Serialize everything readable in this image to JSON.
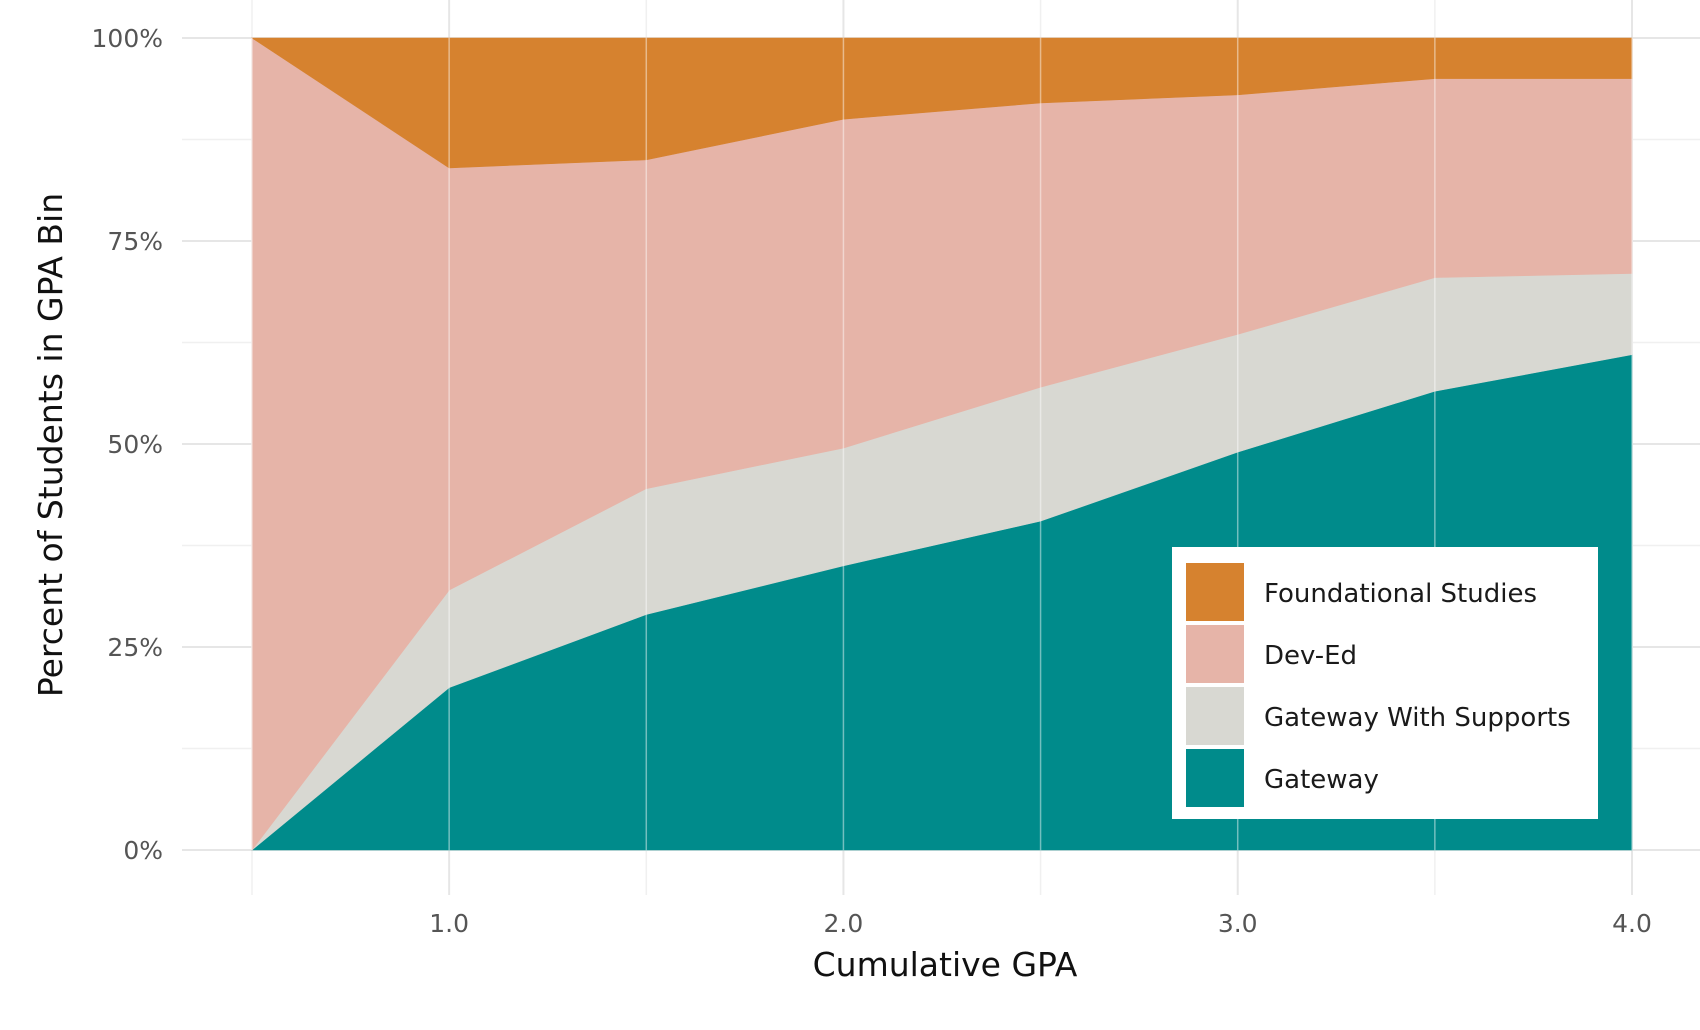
{
  "chart_data": {
    "type": "area",
    "stacked": true,
    "normalized": true,
    "title": "",
    "xlabel": "Cumulative GPA",
    "ylabel": "Percent of Students in GPA Bin",
    "x": [
      0.5,
      1.0,
      1.5,
      2.0,
      2.5,
      3.0,
      3.5,
      4.0
    ],
    "xlim": [
      0.5,
      4.0
    ],
    "xticks": [
      1.0,
      2.0,
      3.0,
      4.0
    ],
    "xtick_labels": [
      "1.0",
      "2.0",
      "3.0",
      "4.0"
    ],
    "ylim": [
      0,
      100
    ],
    "yticks": [
      0,
      25,
      50,
      75,
      100
    ],
    "ytick_labels": [
      "0%",
      "25%",
      "50%",
      "75%",
      "100%"
    ],
    "grid": true,
    "legend_position": "bottom-right",
    "series": [
      {
        "name": "Gateway",
        "color": "#008B8B",
        "values": [
          0,
          20,
          29,
          35,
          40.5,
          49,
          56.5,
          61
        ]
      },
      {
        "name": "Gateway With Supports",
        "color": "#D8D8D2",
        "values": [
          0,
          12,
          15.5,
          14.5,
          16.5,
          14.5,
          14,
          10
        ]
      },
      {
        "name": "Dev-Ed",
        "color": "#E6B4A8",
        "values": [
          100,
          52,
          40.5,
          40.5,
          35,
          29.5,
          24.5,
          24
        ]
      },
      {
        "name": "Foundational Studies",
        "color": "#D6822F",
        "values": [
          0,
          16,
          15,
          10,
          8,
          7,
          5,
          5
        ]
      }
    ],
    "legend_order": [
      "Foundational Studies",
      "Dev-Ed",
      "Gateway With Supports",
      "Gateway"
    ]
  }
}
